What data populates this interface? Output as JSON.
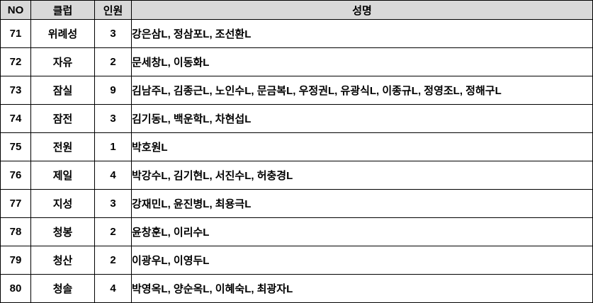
{
  "colors": {
    "header_bg": "#d9d9d9",
    "border": "#000000",
    "text": "#000000",
    "row_bg": "#ffffff"
  },
  "table": {
    "headers": {
      "no": "NO",
      "club": "클럽",
      "count": "인원",
      "names": "성명"
    },
    "rows": [
      {
        "no": "71",
        "club": "위례성",
        "count": "3",
        "names": "강은삼L, 정삼포L, 조선환L"
      },
      {
        "no": "72",
        "club": "자유",
        "count": "2",
        "names": "문세창L, 이동화L"
      },
      {
        "no": "73",
        "club": "잠실",
        "count": "9",
        "names": "김남주L, 김종근L, 노인수L, 문금복L, 우정권L, 유광식L, 이종규L, 정영조L, 정해구L"
      },
      {
        "no": "74",
        "club": "잠전",
        "count": "3",
        "names": "김기동L, 백운학L, 차현섭L"
      },
      {
        "no": "75",
        "club": "전원",
        "count": "1",
        "names": "박호원L"
      },
      {
        "no": "76",
        "club": "제일",
        "count": "4",
        "names": "박강수L, 김기현L, 서진수L, 허충경L"
      },
      {
        "no": "77",
        "club": "지성",
        "count": "3",
        "names": "강재민L, 윤진병L, 최용극L"
      },
      {
        "no": "78",
        "club": "청봉",
        "count": "2",
        "names": "윤창훈L, 이리수L"
      },
      {
        "no": "79",
        "club": "청산",
        "count": "2",
        "names": "이광우L, 이영두L"
      },
      {
        "no": "80",
        "club": "청솔",
        "count": "4",
        "names": "박영옥L, 양순옥L, 이혜숙L, 최광자L"
      }
    ]
  }
}
